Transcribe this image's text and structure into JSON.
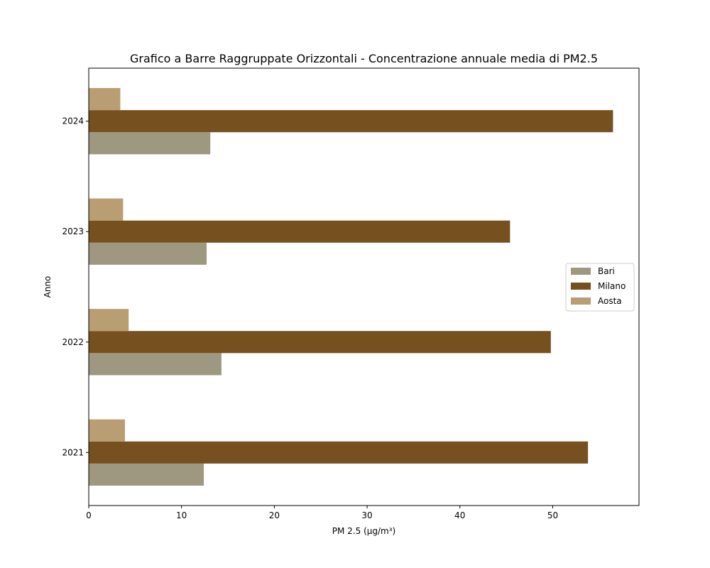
{
  "chart_data": {
    "type": "bar",
    "orientation": "horizontal",
    "title": "Grafico a Barre Raggruppate Orizzontali - Concentrazione annuale media di PM2.5",
    "xlabel": "PM 2.5 (µg/m³)",
    "ylabel": "Anno",
    "categories": [
      "2021",
      "2022",
      "2023",
      "2024"
    ],
    "xlim": [
      0,
      59.3
    ],
    "xticks": [
      0,
      10,
      20,
      30,
      40,
      50
    ],
    "grid": false,
    "legend_position": "right",
    "series": [
      {
        "name": "Bari",
        "color": "#9e9880",
        "values": [
          12.4,
          14.3,
          12.7,
          13.1
        ]
      },
      {
        "name": "Milano",
        "color": "#775020",
        "values": [
          53.8,
          49.8,
          45.4,
          56.5
        ]
      },
      {
        "name": "Aosta",
        "color": "#b89e72",
        "values": [
          3.9,
          4.3,
          3.7,
          3.4
        ]
      }
    ]
  }
}
